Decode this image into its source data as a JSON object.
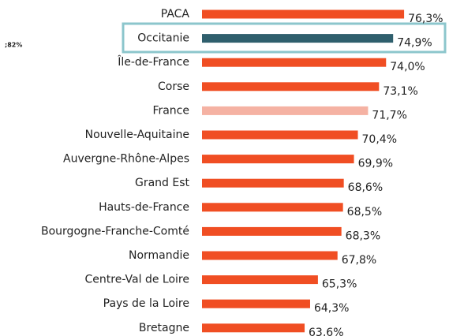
{
  "chart_data": {
    "type": "hbar",
    "annotation": ";82%",
    "categories": [
      "PACA",
      "Occitanie",
      "Île-de-France",
      "Corse",
      "France",
      "Nouvelle-Aquitaine",
      "Auvergne-Rhône-Alpes",
      "Grand Est",
      "Hauts-de-France",
      "Bourgogne-Franche-Comté",
      "Normandie",
      "Centre-Val de Loire",
      "Pays de la Loire",
      "Bretagne"
    ],
    "values": [
      76.3,
      74.9,
      74.0,
      73.1,
      71.7,
      70.4,
      69.9,
      68.6,
      68.5,
      68.3,
      67.8,
      65.3,
      64.3,
      63.6
    ],
    "value_labels": [
      "76,3%",
      "74,9%",
      "74,0%",
      "73,1%",
      "71,7%",
      "70,4%",
      "69,9%",
      "68,6%",
      "68,5%",
      "68,3%",
      "67,8%",
      "65,3%",
      "64,3%",
      "63,6%"
    ],
    "colors": [
      "#f04e23",
      "#2f5f6d",
      "#f04e23",
      "#f04e23",
      "#f5b2a3",
      "#f04e23",
      "#f04e23",
      "#f04e23",
      "#f04e23",
      "#f04e23",
      "#f04e23",
      "#f04e23",
      "#f04e23",
      "#f04e23"
    ],
    "xlim": [
      50.5,
      77.5
    ]
  }
}
